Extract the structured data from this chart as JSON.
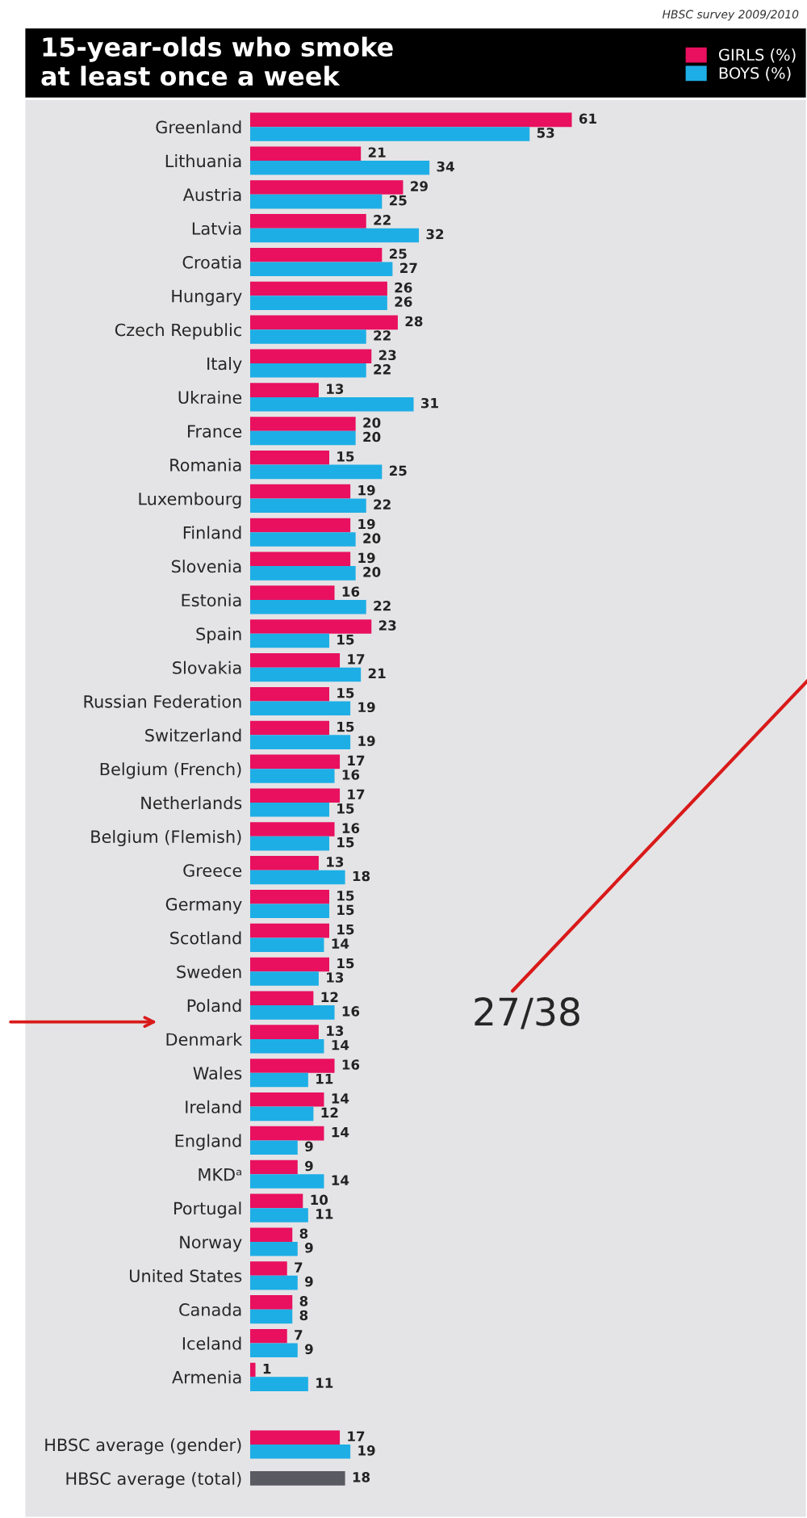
{
  "chart_data": {
    "type": "bar",
    "orientation": "horizontal",
    "title": "15-year-olds who smoke\nat least once a week",
    "subtitle": "HBSC survey 2009/2010",
    "categories": [
      "Greenland",
      "Lithuania",
      "Austria",
      "Latvia",
      "Croatia",
      "Hungary",
      "Czech Republic",
      "Italy",
      "Ukraine",
      "France",
      "Romania",
      "Luxembourg",
      "Finland",
      "Slovenia",
      "Estonia",
      "Spain",
      "Slovakia",
      "Russian Federation",
      "Switzerland",
      "Belgium (French)",
      "Netherlands",
      "Belgium (Flemish)",
      "Greece",
      "Germany",
      "Scotland",
      "Sweden",
      "Poland",
      "Denmark",
      "Wales",
      "Ireland",
      "England",
      "MKDᵃ",
      "Portugal",
      "Norway",
      "United States",
      "Canada",
      "Iceland",
      "Armenia",
      null,
      "HBSC average (gender)",
      "HBSC average (total)"
    ],
    "series": [
      {
        "name": "GIRLS (%)",
        "color": "#e8105f",
        "values": [
          61,
          21,
          29,
          22,
          25,
          26,
          28,
          23,
          13,
          20,
          15,
          19,
          19,
          19,
          16,
          23,
          17,
          15,
          15,
          17,
          17,
          16,
          13,
          15,
          15,
          15,
          12,
          13,
          16,
          14,
          14,
          9,
          10,
          8,
          7,
          8,
          7,
          1,
          null,
          17,
          null
        ]
      },
      {
        "name": "BOYS (%)",
        "color": "#1eaee6",
        "values": [
          53,
          34,
          25,
          32,
          27,
          26,
          22,
          22,
          31,
          20,
          25,
          22,
          20,
          20,
          22,
          15,
          21,
          19,
          19,
          16,
          15,
          15,
          18,
          15,
          14,
          13,
          16,
          14,
          11,
          12,
          9,
          14,
          11,
          9,
          9,
          8,
          9,
          11,
          null,
          19,
          null
        ]
      },
      {
        "color": "#5a5a62",
        "values": [
          null,
          null,
          null,
          null,
          null,
          null,
          null,
          null,
          null,
          null,
          null,
          null,
          null,
          null,
          null,
          null,
          null,
          null,
          null,
          null,
          null,
          null,
          null,
          null,
          null,
          null,
          null,
          null,
          null,
          null,
          null,
          null,
          null,
          null,
          null,
          null,
          null,
          null,
          null,
          null,
          18
        ]
      }
    ],
    "tick_labels": "y",
    "legend": "top right",
    "grid": false,
    "data_labels": true,
    "annotations": [
      "27/38"
    ]
  }
}
